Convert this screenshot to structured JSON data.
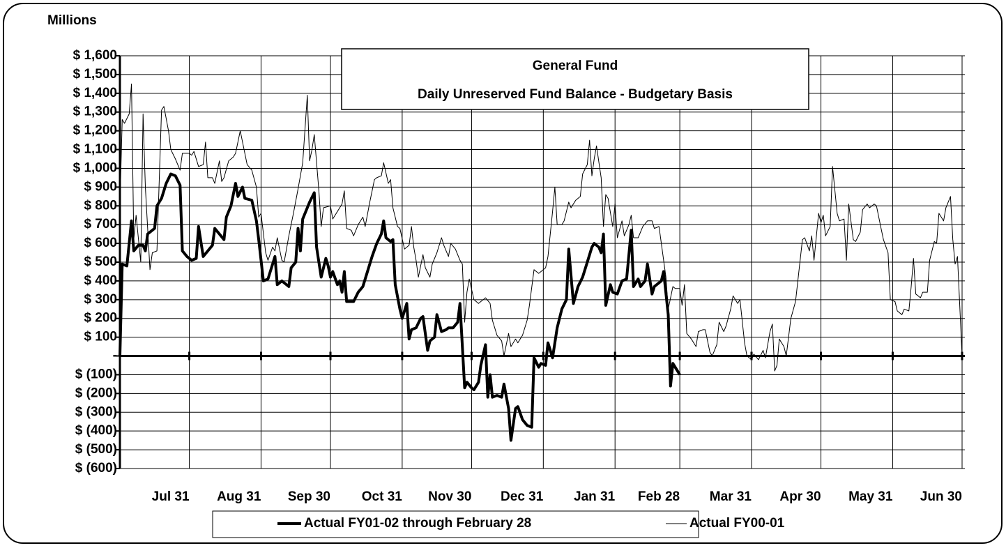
{
  "chart_data": {
    "type": "line",
    "unit_label": "Millions",
    "title": "General Fund",
    "subtitle": "Daily Unreserved Fund Balance - Budgetary Basis",
    "xlim": [
      0,
      364
    ],
    "xticks": [
      {
        "value": 30,
        "label": "Jul 31"
      },
      {
        "value": 61,
        "label": "Aug 31"
      },
      {
        "value": 91,
        "label": "Sep 30"
      },
      {
        "value": 122,
        "label": "Oct 31"
      },
      {
        "value": 152,
        "label": "Nov 30"
      },
      {
        "value": 183,
        "label": "Dec 31"
      },
      {
        "value": 214,
        "label": "Jan 31"
      },
      {
        "value": 242,
        "label": "Feb 28"
      },
      {
        "value": 273,
        "label": "Mar 31"
      },
      {
        "value": 303,
        "label": "Apr 30"
      },
      {
        "value": 334,
        "label": "May 31"
      },
      {
        "value": 364,
        "label": "Jun 30"
      }
    ],
    "ylim": [
      -600,
      1600
    ],
    "yticks": [
      {
        "value": 1600,
        "label": "$ 1,600"
      },
      {
        "value": 1500,
        "label": "$ 1,500"
      },
      {
        "value": 1400,
        "label": "$ 1,400"
      },
      {
        "value": 1300,
        "label": "$ 1,300"
      },
      {
        "value": 1200,
        "label": "$ 1,200"
      },
      {
        "value": 1100,
        "label": "$ 1,100"
      },
      {
        "value": 1000,
        "label": "$ 1,000"
      },
      {
        "value": 900,
        "label": "$ 900"
      },
      {
        "value": 800,
        "label": "$ 800"
      },
      {
        "value": 700,
        "label": "$ 700"
      },
      {
        "value": 600,
        "label": "$ 600"
      },
      {
        "value": 500,
        "label": "$ 500"
      },
      {
        "value": 400,
        "label": "$ 400"
      },
      {
        "value": 300,
        "label": "$ 300"
      },
      {
        "value": 200,
        "label": "$ 200"
      },
      {
        "value": 100,
        "label": "$ 100"
      },
      {
        "value": 0,
        "label": "-"
      },
      {
        "value": -100,
        "label": "$ (100)"
      },
      {
        "value": -200,
        "label": "$ (200)"
      },
      {
        "value": -300,
        "label": "$ (300)"
      },
      {
        "value": -400,
        "label": "$ (400)"
      },
      {
        "value": -500,
        "label": "$ (500)"
      },
      {
        "value": -600,
        "label": "$ (600)"
      }
    ],
    "grid": true,
    "legend": "bottom",
    "series": [
      {
        "name": "Actual FY01-02 through February 28",
        "color": "#000000",
        "line_width": 4,
        "x": [
          0,
          1,
          3,
          5,
          6,
          8,
          10,
          11,
          12,
          15,
          16,
          18,
          20,
          22,
          24,
          26,
          27,
          29,
          31,
          33,
          34,
          36,
          38,
          40,
          41,
          43,
          45,
          46,
          48,
          50,
          51,
          53,
          54,
          57,
          59,
          60,
          62,
          64,
          67,
          68,
          70,
          73,
          74,
          76,
          77,
          78,
          79,
          82,
          84,
          85,
          87,
          89,
          90,
          91,
          92,
          94,
          95,
          96,
          97,
          98,
          101,
          103,
          105,
          107,
          109,
          111,
          113,
          114,
          115,
          117,
          118,
          119,
          121,
          122,
          124,
          125,
          126,
          128,
          130,
          131,
          133,
          134,
          136,
          137,
          139,
          141,
          142,
          144,
          146,
          147,
          149,
          150,
          152,
          153,
          155,
          156,
          158,
          159,
          160,
          161,
          163,
          165,
          166,
          168,
          169,
          171,
          172,
          174,
          176,
          178,
          179,
          181,
          182,
          184,
          185,
          187,
          189,
          191,
          193,
          194,
          196,
          198,
          200,
          202,
          204,
          205,
          207,
          208,
          209,
          210,
          212,
          213,
          215,
          217,
          219,
          221,
          222,
          224,
          225,
          227,
          228,
          230,
          231,
          234,
          235,
          237,
          238,
          239,
          241,
          242
        ],
        "values": [
          0,
          490,
          480,
          720,
          560,
          590,
          590,
          560,
          650,
          680,
          800,
          840,
          920,
          970,
          960,
          910,
          560,
          530,
          510,
          520,
          690,
          530,
          560,
          590,
          680,
          650,
          620,
          740,
          800,
          920,
          850,
          900,
          840,
          830,
          720,
          620,
          400,
          410,
          530,
          380,
          400,
          370,
          470,
          500,
          680,
          560,
          730,
          820,
          870,
          580,
          420,
          520,
          480,
          420,
          450,
          380,
          400,
          340,
          450,
          290,
          290,
          340,
          370,
          450,
          530,
          600,
          650,
          720,
          630,
          610,
          620,
          380,
          250,
          200,
          280,
          90,
          140,
          150,
          200,
          210,
          30,
          80,
          100,
          220,
          130,
          140,
          150,
          150,
          180,
          280,
          -170,
          -140,
          -170,
          -180,
          -140,
          -50,
          60,
          -220,
          -100,
          -220,
          -210,
          -220,
          -150,
          -280,
          -450,
          -280,
          -270,
          -340,
          -370,
          -380,
          -10,
          -60,
          -40,
          -50,
          70,
          -10,
          150,
          250,
          300,
          570,
          280,
          370,
          420,
          500,
          580,
          600,
          580,
          550,
          650,
          270,
          380,
          340,
          330,
          400,
          410,
          670,
          370,
          410,
          370,
          400,
          490,
          330,
          370,
          400,
          450,
          220,
          -160,
          -40,
          -80,
          -100
        ]
      },
      {
        "name": "Actual FY00-01",
        "color": "#000000",
        "line_width": 1,
        "x": [
          0,
          1,
          2,
          4,
          5,
          6,
          7,
          9,
          10,
          11,
          13,
          14,
          16,
          18,
          19,
          21,
          22,
          24,
          26,
          27,
          30,
          31,
          32,
          34,
          36,
          37,
          38,
          40,
          41,
          43,
          44,
          45,
          47,
          49,
          50,
          52,
          53,
          55,
          57,
          59,
          60,
          61,
          63,
          64,
          66,
          67,
          68,
          70,
          71,
          73,
          75,
          77,
          79,
          81,
          82,
          83,
          84,
          86,
          87,
          88,
          91,
          92,
          94,
          96,
          97,
          98,
          100,
          101,
          103,
          105,
          106,
          108,
          110,
          111,
          113,
          114,
          116,
          117,
          118,
          120,
          121,
          123,
          125,
          126,
          127,
          128,
          129,
          131,
          132,
          134,
          135,
          137,
          139,
          140,
          142,
          143,
          145,
          147,
          148,
          149,
          150,
          151,
          153,
          155,
          156,
          158,
          160,
          161,
          163,
          165,
          166,
          168,
          169,
          171,
          172,
          174,
          176,
          177,
          179,
          181,
          182,
          184,
          185,
          187,
          188,
          189,
          191,
          192,
          194,
          195,
          197,
          199,
          200,
          202,
          203,
          204,
          205,
          206,
          208,
          209,
          210,
          211,
          213,
          214,
          215,
          217,
          218,
          220,
          221,
          222,
          224,
          226,
          228,
          230,
          231,
          233,
          234,
          236,
          237,
          239,
          240,
          242,
          243,
          244,
          245,
          247,
          249,
          250,
          252,
          253,
          255,
          256,
          258,
          259,
          261,
          262,
          264,
          265,
          267,
          268,
          270,
          271,
          273,
          274,
          276,
          278,
          279,
          281,
          282,
          283,
          284,
          285,
          287,
          288,
          290,
          292,
          293,
          295,
          296,
          298,
          299,
          300,
          302,
          303,
          304,
          305,
          307,
          308,
          310,
          311,
          313,
          314,
          315,
          317,
          318,
          320,
          321,
          323,
          324,
          326,
          327,
          329,
          330,
          332,
          333,
          335,
          336,
          338,
          339,
          341,
          342,
          343,
          344,
          346,
          347,
          349,
          350,
          352,
          353,
          354,
          356,
          357,
          359,
          360,
          361,
          362,
          364
        ],
        "values": [
          800,
          1260,
          1240,
          1290,
          1450,
          620,
          750,
          500,
          1290,
          900,
          460,
          550,
          560,
          1310,
          1330,
          1200,
          1100,
          1050,
          990,
          1080,
          1080,
          1070,
          1090,
          1010,
          1020,
          1140,
          950,
          950,
          920,
          1040,
          930,
          950,
          1040,
          1060,
          1080,
          1200,
          1140,
          1020,
          990,
          900,
          740,
          760,
          550,
          510,
          580,
          560,
          630,
          510,
          500,
          640,
          760,
          890,
          1030,
          1390,
          1040,
          1100,
          1180,
          880,
          690,
          790,
          800,
          730,
          770,
          810,
          880,
          680,
          670,
          640,
          700,
          740,
          690,
          820,
          940,
          950,
          960,
          1030,
          920,
          940,
          790,
          690,
          680,
          570,
          590,
          690,
          580,
          510,
          420,
          540,
          470,
          420,
          490,
          550,
          630,
          590,
          530,
          600,
          570,
          510,
          490,
          180,
          340,
          410,
          300,
          280,
          290,
          310,
          280,
          190,
          110,
          80,
          0,
          120,
          50,
          90,
          70,
          110,
          190,
          270,
          460,
          440,
          450,
          470,
          530,
          770,
          900,
          700,
          700,
          720,
          820,
          790,
          830,
          850,
          970,
          1020,
          1150,
          960,
          1050,
          1120,
          950,
          690,
          860,
          840,
          690,
          810,
          630,
          720,
          640,
          700,
          750,
          630,
          630,
          690,
          720,
          720,
          680,
          690,
          600,
          420,
          250,
          370,
          360,
          360,
          270,
          380,
          120,
          90,
          50,
          130,
          140,
          140,
          20,
          0,
          60,
          180,
          130,
          160,
          250,
          320,
          280,
          300,
          70,
          0,
          -20,
          10,
          -20,
          30,
          -10,
          130,
          170,
          -80,
          -50,
          90,
          50,
          0,
          200,
          290,
          400,
          620,
          630,
          560,
          640,
          510,
          760,
          710,
          750,
          640,
          690,
          1010,
          760,
          720,
          730,
          510,
          810,
          620,
          610,
          660,
          780,
          810,
          790,
          810,
          800,
          680,
          620,
          550,
          300,
          290,
          240,
          220,
          250,
          240,
          370,
          520,
          330,
          310,
          340,
          340,
          510,
          610,
          600,
          760,
          720,
          790,
          850,
          620,
          490,
          530,
          0
        ]
      }
    ]
  }
}
